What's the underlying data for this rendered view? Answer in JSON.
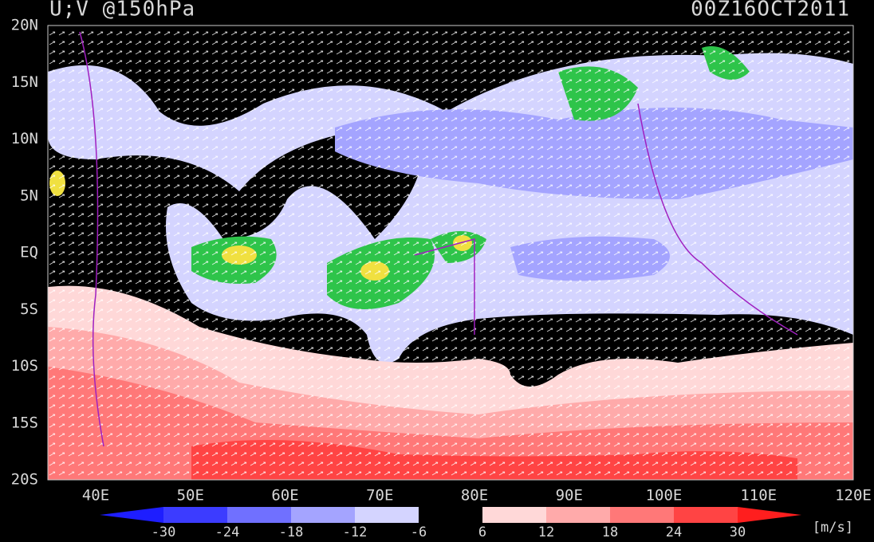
{
  "header": {
    "title": "U;V @150hPa",
    "time": "00Z16OCT2011"
  },
  "map": {
    "lat_labels": [
      "20N",
      "15N",
      "10N",
      "5N",
      "EQ",
      "5S",
      "10S",
      "15S",
      "20S"
    ],
    "lon_labels": [
      "40E",
      "50E",
      "60E",
      "70E",
      "80E",
      "90E",
      "100E",
      "110E",
      "120E"
    ]
  },
  "colorbar": {
    "labels": [
      -30,
      -24,
      -18,
      -12,
      -6,
      6,
      12,
      18,
      24,
      30
    ],
    "colors": [
      "#1e1eff",
      "#3c3cff",
      "#7070ff",
      "#a4a4ff",
      "#d4d4ff",
      "#000000",
      "#ffd8d8",
      "#ffaaaa",
      "#ff7878",
      "#ff4444",
      "#ff1e1e"
    ],
    "unit": "[m/s]"
  }
}
